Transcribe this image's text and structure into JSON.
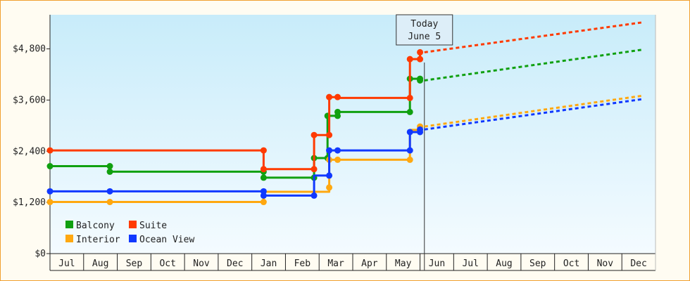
{
  "chart_data": {
    "type": "line",
    "step": true,
    "x_unit": "month",
    "x_range": [
      "Jul",
      "Dec (next year)"
    ],
    "x_tick_labels": [
      "Jul",
      "Aug",
      "Sep",
      "Oct",
      "Nov",
      "Dec",
      "Jan",
      "Feb",
      "Mar",
      "Apr",
      "May",
      "Jun",
      "Jul",
      "Aug",
      "Sep",
      "Oct",
      "Nov",
      "Dec"
    ],
    "y_tick_labels": [
      "$0",
      "$1,200",
      "$2,400",
      "$3,600",
      "$4,800"
    ],
    "ylim": [
      0,
      5600
    ],
    "grid": false,
    "legend_position": "bottom-left",
    "annotation": {
      "line1": "Today",
      "line2": "June 5",
      "x": 11.13
    },
    "colors": {
      "Balcony": "#10a010",
      "Suite": "#ff3a00",
      "Interior": "#ffa810",
      "Ocean View": "#1038ff"
    },
    "series": [
      {
        "name": "Balcony",
        "history": [
          [
            0.0,
            2050
          ],
          [
            1.78,
            2050
          ],
          [
            1.78,
            1920
          ],
          [
            6.35,
            1920
          ],
          [
            6.35,
            1780
          ],
          [
            7.85,
            1780
          ],
          [
            7.85,
            2240
          ],
          [
            8.25,
            2240
          ],
          [
            8.25,
            3230
          ],
          [
            8.55,
            3230
          ],
          [
            8.55,
            3320
          ],
          [
            10.7,
            3320
          ],
          [
            10.7,
            4100
          ],
          [
            11.0,
            4100
          ],
          [
            11.0,
            4060
          ]
        ],
        "markers": [
          [
            0,
            2050
          ],
          [
            1.78,
            2050
          ],
          [
            1.78,
            1920
          ],
          [
            6.35,
            1920
          ],
          [
            6.35,
            1780
          ],
          [
            7.85,
            1780
          ],
          [
            7.85,
            2240
          ],
          [
            8.25,
            2240
          ],
          [
            8.25,
            3230
          ],
          [
            8.55,
            3230
          ],
          [
            8.55,
            3320
          ],
          [
            10.7,
            3320
          ],
          [
            10.7,
            4100
          ],
          [
            11.0,
            4100
          ],
          [
            11.0,
            4060
          ]
        ],
        "forecast": [
          [
            11.13,
            4060
          ],
          [
            17.6,
            4780
          ]
        ]
      },
      {
        "name": "Suite",
        "history": [
          [
            0.0,
            2420
          ],
          [
            6.35,
            2420
          ],
          [
            6.35,
            1980
          ],
          [
            7.85,
            1980
          ],
          [
            7.85,
            2780
          ],
          [
            8.3,
            2780
          ],
          [
            8.3,
            3670
          ],
          [
            8.55,
            3670
          ],
          [
            8.55,
            3650
          ],
          [
            10.7,
            3650
          ],
          [
            10.7,
            4560
          ],
          [
            11.0,
            4560
          ],
          [
            11.0,
            4720
          ]
        ],
        "markers": [
          [
            0,
            2420
          ],
          [
            6.35,
            2420
          ],
          [
            6.35,
            1980
          ],
          [
            7.85,
            1980
          ],
          [
            7.85,
            2780
          ],
          [
            8.3,
            2780
          ],
          [
            8.3,
            3670
          ],
          [
            8.55,
            3670
          ],
          [
            10.7,
            3650
          ],
          [
            10.7,
            4560
          ],
          [
            11.0,
            4560
          ],
          [
            11.0,
            4720
          ]
        ],
        "forecast": [
          [
            11.13,
            4720
          ],
          [
            17.6,
            5420
          ]
        ]
      },
      {
        "name": "Interior",
        "history": [
          [
            0.0,
            1210
          ],
          [
            1.78,
            1210
          ],
          [
            6.35,
            1210
          ],
          [
            6.35,
            1450
          ],
          [
            8.3,
            1450
          ],
          [
            8.3,
            1550
          ],
          [
            8.3,
            2200
          ],
          [
            8.55,
            2200
          ],
          [
            10.7,
            2200
          ],
          [
            10.7,
            2900
          ],
          [
            11.0,
            2900
          ],
          [
            11.0,
            2980
          ]
        ],
        "markers": [
          [
            0,
            1210
          ],
          [
            1.78,
            1210
          ],
          [
            6.35,
            1210
          ],
          [
            8.3,
            1550
          ],
          [
            8.3,
            2200
          ],
          [
            8.55,
            2200
          ],
          [
            10.7,
            2200
          ],
          [
            11.0,
            2980
          ]
        ],
        "forecast": [
          [
            11.13,
            2980
          ],
          [
            17.6,
            3700
          ]
        ]
      },
      {
        "name": "Ocean View",
        "history": [
          [
            0.0,
            1460
          ],
          [
            1.78,
            1460
          ],
          [
            6.35,
            1460
          ],
          [
            6.35,
            1360
          ],
          [
            7.85,
            1360
          ],
          [
            7.85,
            1830
          ],
          [
            8.3,
            1830
          ],
          [
            8.3,
            2420
          ],
          [
            8.55,
            2420
          ],
          [
            10.7,
            2420
          ],
          [
            10.7,
            2850
          ],
          [
            11.0,
            2850
          ],
          [
            11.0,
            2910
          ]
        ],
        "markers": [
          [
            0,
            1460
          ],
          [
            1.78,
            1460
          ],
          [
            6.35,
            1460
          ],
          [
            6.35,
            1360
          ],
          [
            7.85,
            1360
          ],
          [
            8.3,
            1830
          ],
          [
            8.3,
            2420
          ],
          [
            8.55,
            2420
          ],
          [
            10.7,
            2420
          ],
          [
            10.7,
            2850
          ],
          [
            11.0,
            2850
          ],
          [
            11.0,
            2910
          ]
        ],
        "forecast": [
          [
            11.13,
            2910
          ],
          [
            17.6,
            3620
          ]
        ]
      }
    ]
  }
}
